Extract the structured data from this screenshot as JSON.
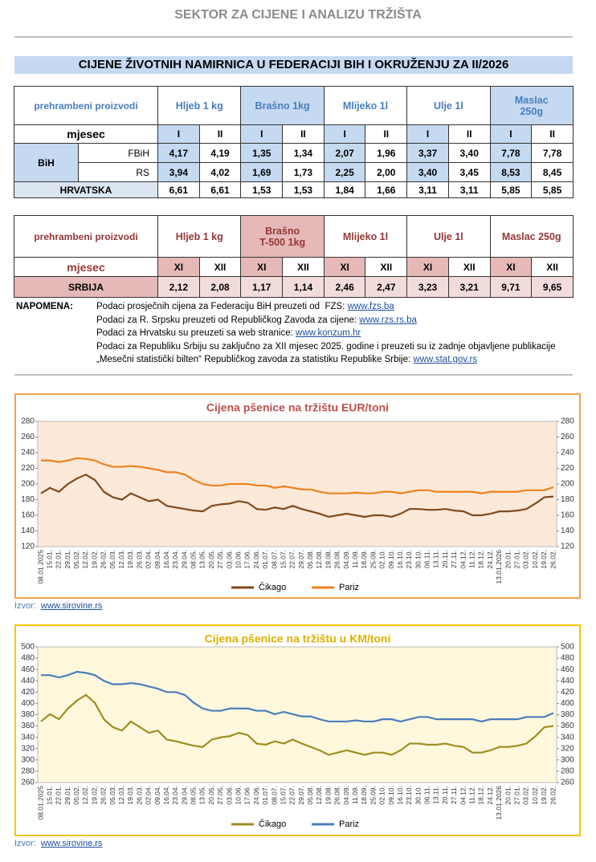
{
  "header": {
    "title": "SEKTOR ZA CIJENE I ANALIZU TRŽIŠTA",
    "banner": "CIJENE ŽIVOTNIH NAMIRNICA U FEDERACIJI BIH I OKRUŽENJU ZA II/2026"
  },
  "table1": {
    "header": [
      "prehrambeni proizvodi",
      "Hljeb 1 kg",
      "Brašno 1kg",
      "Mlijeko 1l",
      "Ulje 1l",
      "Maslac\n250g"
    ],
    "month_label": "mjesec",
    "months": [
      "I",
      "II"
    ],
    "group": "BiH",
    "rows": [
      {
        "label": "FBiH",
        "values": [
          "4,17",
          "4,19",
          "1,35",
          "1,34",
          "2,07",
          "1,96",
          "3,37",
          "3,40",
          "7,78",
          "7,78"
        ]
      },
      {
        "label": "RS",
        "values": [
          "3,94",
          "4,02",
          "1,69",
          "1,73",
          "2,25",
          "2,00",
          "3,40",
          "3,45",
          "8,53",
          "8,45"
        ]
      },
      {
        "label": "HRVATSKA",
        "values": [
          "6,61",
          "6,61",
          "1,53",
          "1,53",
          "1,84",
          "1,66",
          "3,11",
          "3,11",
          "5,85",
          "5,85"
        ]
      }
    ]
  },
  "table2": {
    "header": [
      "prehrambeni proizvodi",
      "Hljeb 1 kg",
      "Brašno\nT-500 1kg",
      "Mlijeko  1l",
      "Ulje 1l",
      "Maslac 250g"
    ],
    "month_label": "mjesec",
    "months": [
      "XI",
      "XII"
    ],
    "rows": [
      {
        "label": "SRBIJA",
        "values": [
          "2,12",
          "2,08",
          "1,17",
          "1,14",
          "2,46",
          "2,47",
          "3,23",
          "3,21",
          "9,71",
          "9,65"
        ]
      }
    ]
  },
  "note": {
    "label": "NAPOMENA:",
    "lines": [
      {
        "text": "Podaci prosječnih cijena za Federaciju BiH preuzeti od  FZS: ",
        "link": "www.fzs.ba"
      },
      {
        "text": "Podaci za R. Srpsku preuzeti od Republičkog Zavoda za cijene: ",
        "link": "www.rzs.rs.ba"
      },
      {
        "text": "Podaci za Hrvatsku su preuzeti sa web stranice: ",
        "link": "www.konzum.hr"
      },
      {
        "text": "Podaci za Republiku Srbiju su zaključno za XII mjesec 2025. godine i preuzeti su iz zadnje objavljene publikacije"
      },
      {
        "text": "„Mesečni statistički bilten“ Republičkog zavoda za statistiku Republike Srbije: ",
        "link": "www.stat.gov.rs"
      }
    ]
  },
  "chart_data": [
    {
      "type": "line",
      "title": "Cijena pšenice na tržištu EUR/toni",
      "background": "#fde9d9",
      "border": "#f0a050",
      "title_color": "#c0504d",
      "x": [
        "08.01.2025",
        "15.01.",
        "22.01.",
        "29.01.",
        "05.02.",
        "12.02.",
        "19.02.",
        "26.02.",
        "05.03.",
        "12.03.",
        "19.03.",
        "26.03.",
        "02.04.",
        "09.04.",
        "16.04.",
        "23.04.",
        "29.04.",
        "08.05.",
        "13.05.",
        "20.05.",
        "27.05.",
        "03.06.",
        "10.06.",
        "17.06.",
        "24.06.",
        "01.07.",
        "08.07.",
        "15.07.",
        "22.07.",
        "29.07.",
        "05.08.",
        "12.08.",
        "19.08.",
        "26.08.",
        "04.09.",
        "11.09.",
        "18.09.",
        "25.09.",
        "02.10.",
        "09.10.",
        "16.10.",
        "23.10.",
        "30.10.",
        "06.11.",
        "13.11.",
        "20.11.",
        "27.11.",
        "04.12.",
        "11.12.",
        "18.12.",
        "24.12.",
        "13.01.2026",
        "20.01.",
        "27.01.",
        "03.02.",
        "10.02.",
        "19.02.",
        "26.02."
      ],
      "series": [
        {
          "name": "Čikago",
          "color": "#7f4a1d",
          "values": [
            188,
            195,
            190,
            200,
            207,
            212,
            205,
            190,
            183,
            180,
            188,
            183,
            178,
            180,
            172,
            170,
            168,
            166,
            165,
            172,
            174,
            175,
            178,
            176,
            168,
            167,
            170,
            168,
            172,
            168,
            165,
            162,
            158,
            160,
            162,
            160,
            158,
            160,
            160,
            158,
            162,
            168,
            168,
            167,
            167,
            168,
            166,
            165,
            160,
            160,
            162,
            165,
            165,
            166,
            168,
            175,
            183,
            184
          ]
        },
        {
          "name": "Pariz",
          "color": "#f0821e",
          "values": [
            230,
            230,
            228,
            230,
            233,
            232,
            230,
            225,
            222,
            222,
            223,
            222,
            220,
            218,
            215,
            215,
            212,
            205,
            200,
            198,
            198,
            200,
            200,
            200,
            198,
            198,
            195,
            197,
            195,
            193,
            193,
            190,
            188,
            188,
            188,
            189,
            188,
            188,
            190,
            190,
            188,
            190,
            192,
            192,
            190,
            190,
            190,
            190,
            190,
            188,
            190,
            190,
            190,
            190,
            192,
            192,
            192,
            196
          ]
        }
      ],
      "ylim": [
        120,
        280
      ],
      "yticks": [
        120,
        140,
        160,
        180,
        200,
        220,
        240,
        260,
        280
      ],
      "y2lim": [
        120,
        280
      ],
      "y2ticks": [
        120,
        140,
        160,
        180,
        200,
        220,
        240,
        260,
        280
      ],
      "grid": false,
      "source_label": "Izvor:",
      "source_link": "www.sirovine.rs"
    },
    {
      "type": "line",
      "title": "Cijena pšenice na tržištu u KM/toni",
      "background": "#fff8dc",
      "border": "#f5c400",
      "title_color": "#e0b000",
      "x": [
        "08.01.2025",
        "15.01.",
        "22.01.",
        "29.01.",
        "05.02.",
        "12.02.",
        "19.02.",
        "26.02.",
        "05.03.",
        "12.03.",
        "19.03.",
        "26.03.",
        "02.04.",
        "09.04.",
        "16.04.",
        "23.04.",
        "29.04.",
        "08.05.",
        "13.05.",
        "20.05.",
        "27.05.",
        "03.06.",
        "10.06.",
        "17.06.",
        "24.06.",
        "01.07.",
        "08.07.",
        "15.07.",
        "22.07.",
        "29.07.",
        "05.08.",
        "12.08.",
        "19.08.",
        "26.08.",
        "04.09.",
        "11.09.",
        "18.09.",
        "25.09.",
        "02.10.",
        "09.10.",
        "16.10.",
        "23.10.",
        "30.10.",
        "06.11.",
        "13.11.",
        "20.11.",
        "27.11.",
        "04.12.",
        "11.12.",
        "18.12.",
        "24.12.",
        "13.01.2026",
        "20.01.",
        "27.01.",
        "03.02.",
        "10.02.",
        "19.02.",
        "26.02."
      ],
      "series": [
        {
          "name": "Čikago",
          "color": "#a08c20",
          "values": [
            368,
            381,
            372,
            391,
            405,
            415,
            401,
            372,
            358,
            352,
            368,
            358,
            348,
            352,
            336,
            333,
            329,
            325,
            323,
            336,
            340,
            342,
            348,
            344,
            329,
            327,
            333,
            329,
            336,
            329,
            323,
            317,
            309,
            313,
            317,
            313,
            309,
            313,
            313,
            309,
            317,
            329,
            329,
            327,
            327,
            329,
            325,
            323,
            313,
            313,
            317,
            323,
            323,
            325,
            329,
            342,
            358,
            360
          ]
        },
        {
          "name": "Pariz",
          "color": "#4a7ebb",
          "values": [
            450,
            450,
            446,
            450,
            456,
            454,
            450,
            440,
            434,
            434,
            436,
            434,
            430,
            426,
            420,
            420,
            415,
            401,
            391,
            387,
            387,
            391,
            391,
            391,
            387,
            387,
            381,
            385,
            381,
            377,
            377,
            372,
            368,
            368,
            368,
            370,
            368,
            368,
            372,
            372,
            368,
            372,
            376,
            376,
            372,
            372,
            372,
            372,
            372,
            368,
            372,
            372,
            372,
            372,
            376,
            376,
            376,
            383
          ]
        }
      ],
      "ylim": [
        260,
        500
      ],
      "yticks": [
        260,
        280,
        300,
        320,
        340,
        360,
        380,
        400,
        420,
        440,
        460,
        480,
        500
      ],
      "y2lim": [
        260,
        500
      ],
      "y2ticks": [
        260,
        280,
        300,
        320,
        340,
        360,
        380,
        400,
        420,
        440,
        460,
        480,
        500
      ],
      "grid": false,
      "source_label": "Izvor:",
      "source_link": "www.sirovine.rs"
    }
  ]
}
